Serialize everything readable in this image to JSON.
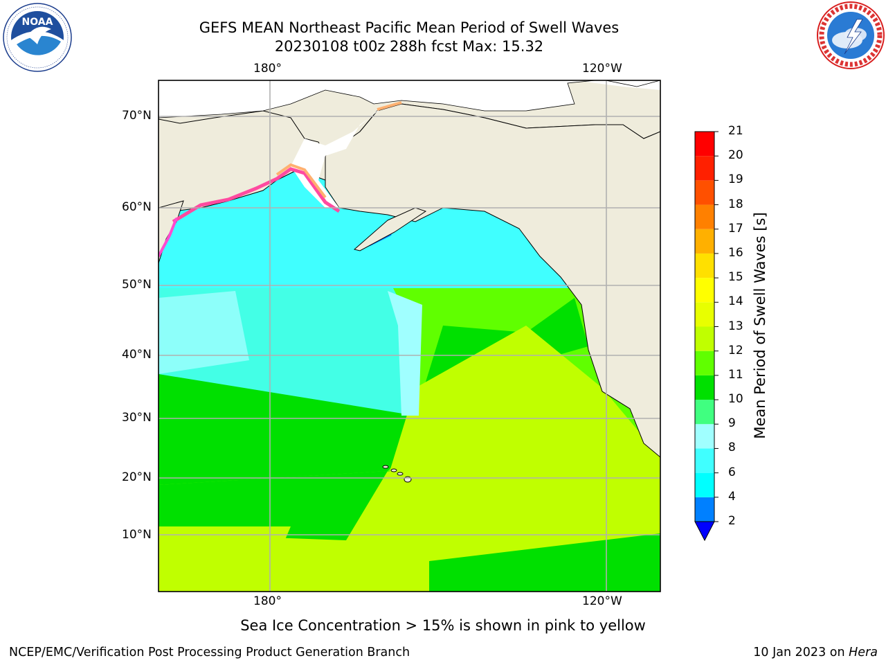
{
  "title": {
    "line1": "GEFS MEAN Northeast Pacific Mean Period of Swell Waves",
    "line2": "20230108 t00z 288h fcst   Max: 15.32"
  },
  "logos": {
    "left": {
      "icon": "noaa-logo-icon",
      "text": "NOAA",
      "ring_text": "NATIONAL OCEANIC AND ATMOSPHERIC ADMINISTRATION · U.S. DEPARTMENT OF COMMERCE"
    },
    "right": {
      "icon": "nws-logo-icon",
      "ring_text": "NATIONAL WEATHER SERVICE"
    }
  },
  "map": {
    "lon_ticks": [
      "180°",
      "120°W"
    ],
    "lat_ticks": [
      "70°N",
      "60°N",
      "50°N",
      "40°N",
      "30°N",
      "20°N",
      "10°N"
    ],
    "land_color": "#efecdc",
    "grid_color": "#b0b0b0"
  },
  "colorbar": {
    "label": "Mean Period of Swell Waves [s]",
    "levels": [
      "2",
      "4",
      "6",
      "8",
      "9",
      "10",
      "11",
      "12",
      "13",
      "14",
      "15",
      "16",
      "17",
      "18",
      "19",
      "20",
      "21"
    ],
    "under_color": "#0000ff",
    "colors": [
      "#0080ff",
      "#00ffff",
      "#40ffff",
      "#a0ffff",
      "#40ff80",
      "#00e000",
      "#60ff00",
      "#c0ff00",
      "#e8ff00",
      "#ffff00",
      "#ffe000",
      "#ffb000",
      "#ff8000",
      "#ff5000",
      "#ff2000",
      "#ff0000"
    ]
  },
  "note": "Sea Ice Concentration > 15% is shown in pink to yellow",
  "footer": {
    "left": "NCEP/EMC/Verification Post Processing Product Generation Branch",
    "right_date": "10 Jan 2023 on ",
    "right_host": "Hera"
  }
}
